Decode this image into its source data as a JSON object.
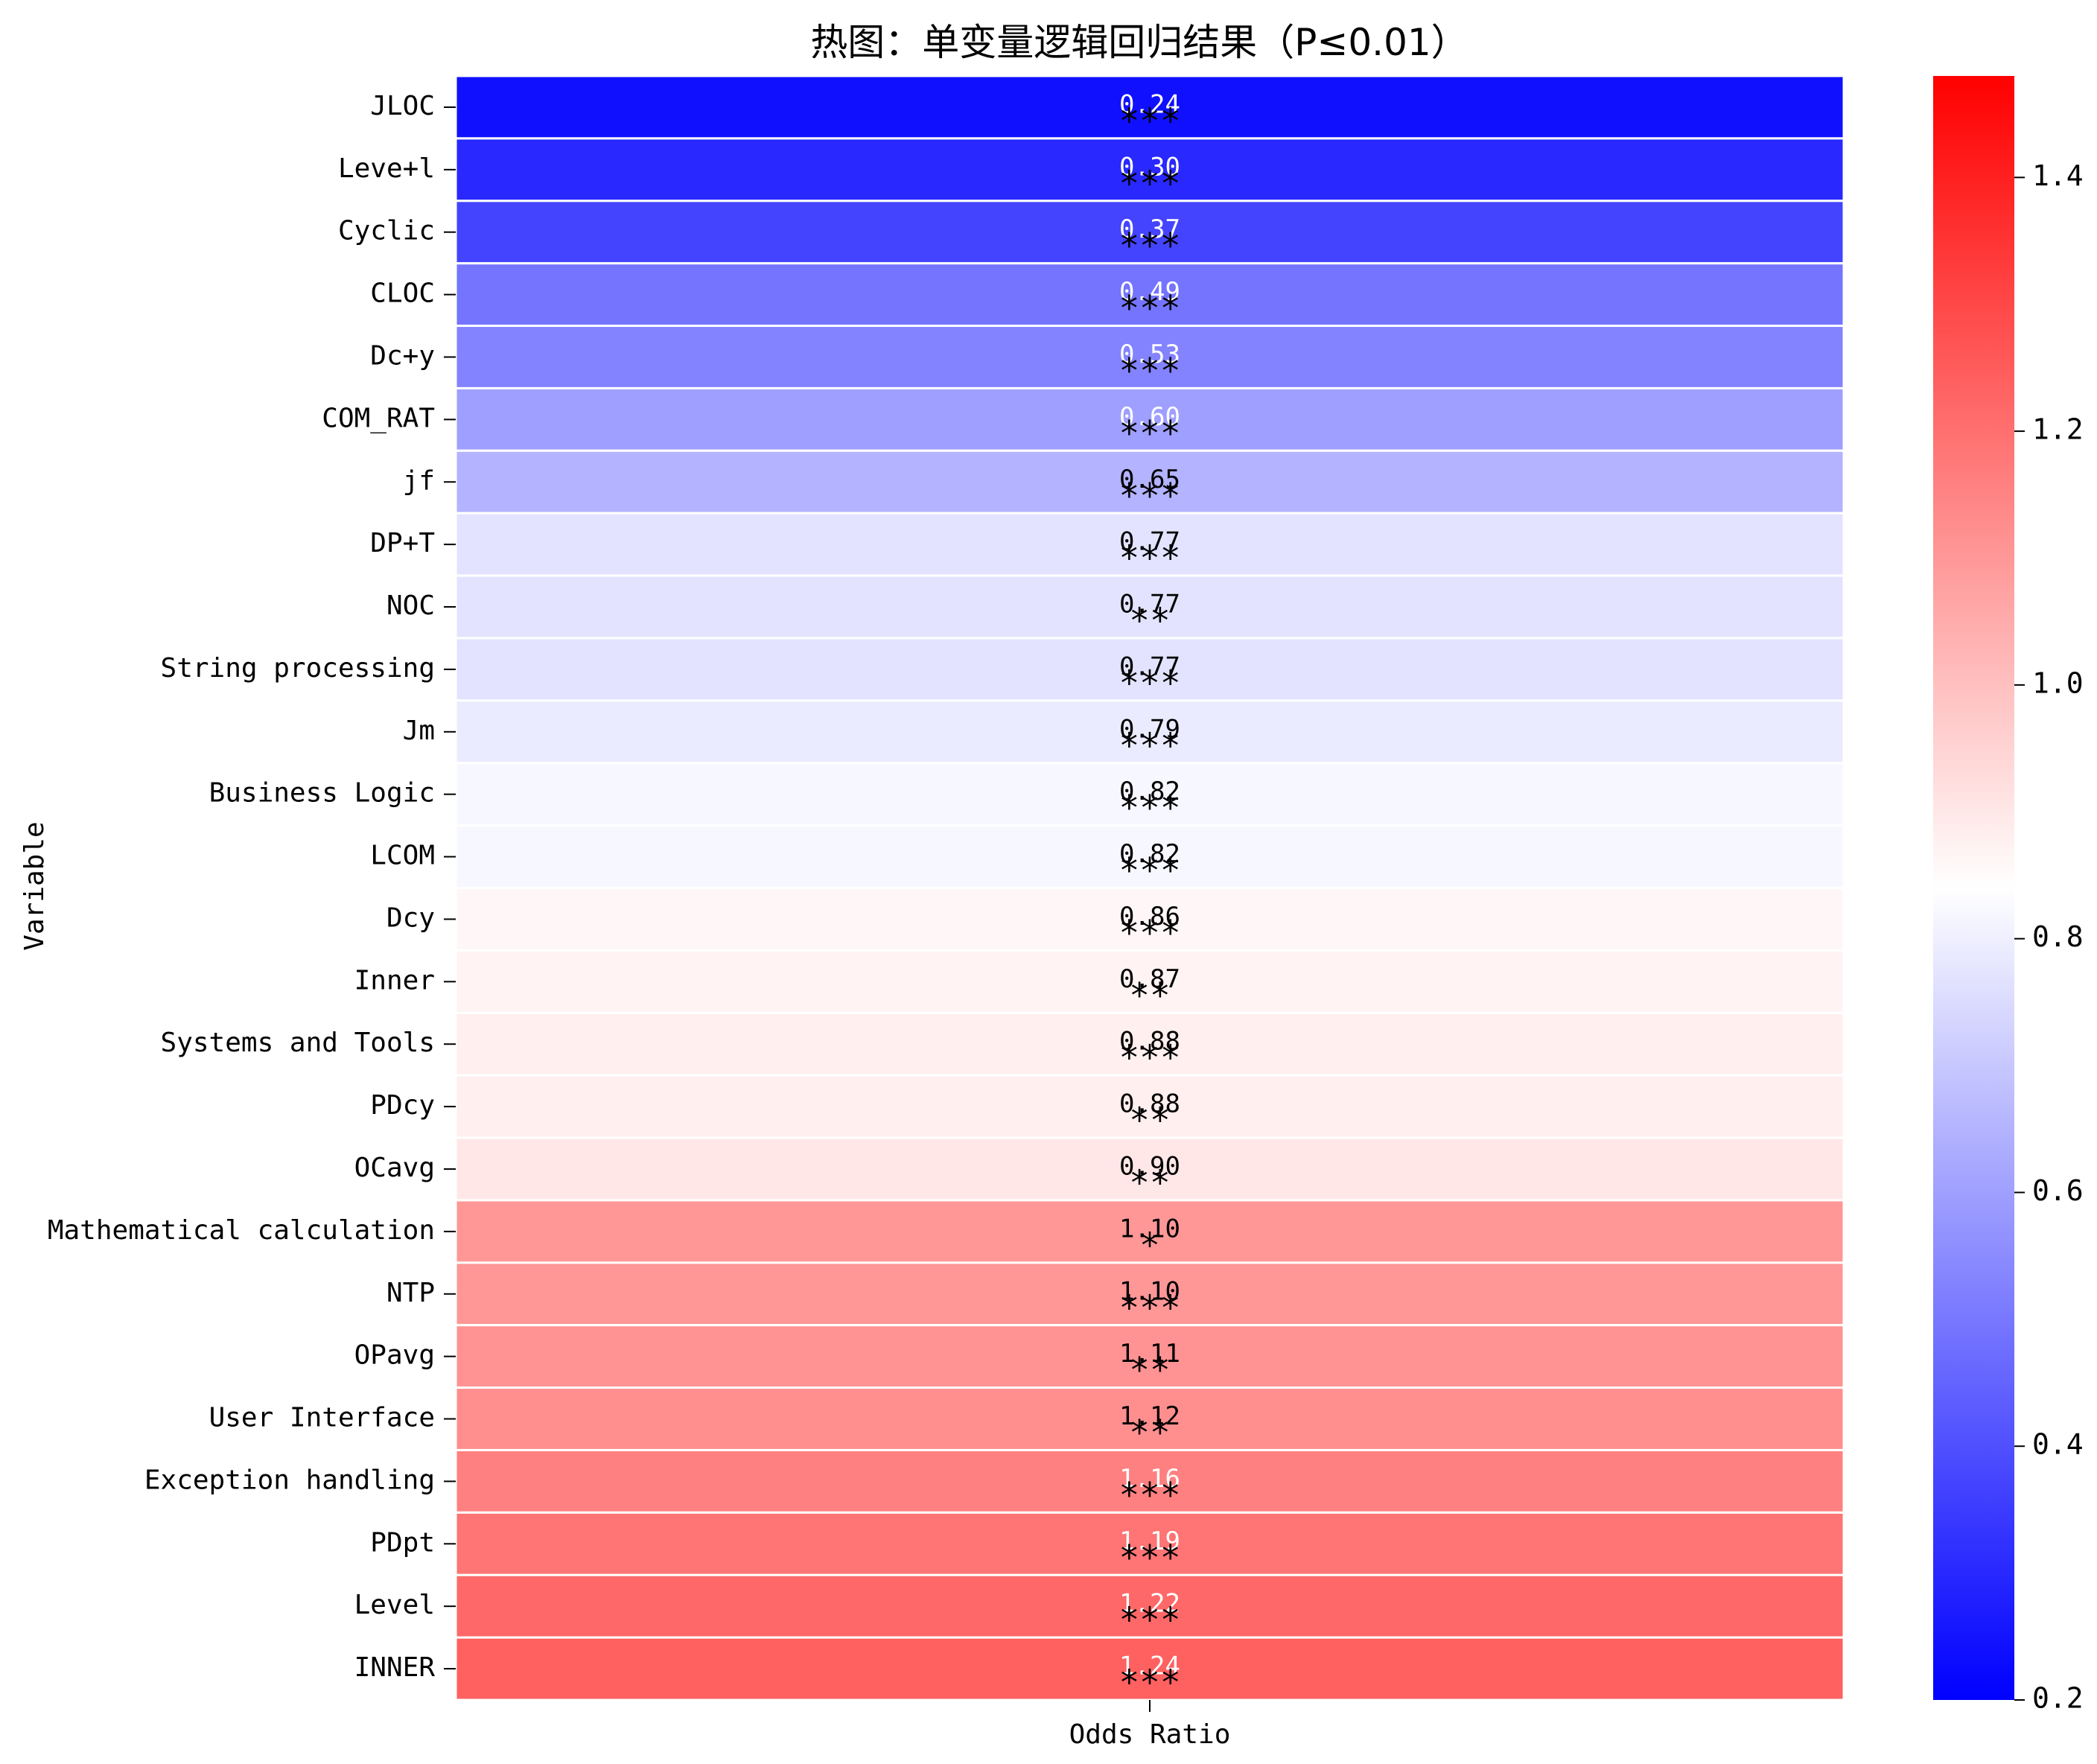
{
  "chart_data": {
    "type": "heatmap",
    "title": "热图：单变量逻辑回归结果（P≤0.01）",
    "xlabel": "",
    "ylabel": "Variable",
    "columns": [
      "Odds Ratio"
    ],
    "rows": [
      {
        "label": "JLOC",
        "value": 0.24,
        "value_text": "0.24",
        "sig": "***"
      },
      {
        "label": "Leve+l",
        "value": 0.3,
        "value_text": "0.30",
        "sig": "***"
      },
      {
        "label": "Cyclic",
        "value": 0.37,
        "value_text": "0.37",
        "sig": "***"
      },
      {
        "label": "CLOC",
        "value": 0.49,
        "value_text": "0.49",
        "sig": "***"
      },
      {
        "label": "Dc+y",
        "value": 0.53,
        "value_text": "0.53",
        "sig": "***"
      },
      {
        "label": "COM_RAT",
        "value": 0.6,
        "value_text": "0.60",
        "sig": "***"
      },
      {
        "label": "jf",
        "value": 0.65,
        "value_text": "0.65",
        "sig": "***"
      },
      {
        "label": "DP+T",
        "value": 0.77,
        "value_text": "0.77",
        "sig": "***"
      },
      {
        "label": "NOC",
        "value": 0.77,
        "value_text": "0.77",
        "sig": "**"
      },
      {
        "label": "String processing",
        "value": 0.77,
        "value_text": "0.77",
        "sig": "***"
      },
      {
        "label": "Jm",
        "value": 0.79,
        "value_text": "0.79",
        "sig": "***"
      },
      {
        "label": "Business Logic",
        "value": 0.82,
        "value_text": "0.82",
        "sig": "***"
      },
      {
        "label": "LCOM",
        "value": 0.82,
        "value_text": "0.82",
        "sig": "***"
      },
      {
        "label": "Dcy",
        "value": 0.86,
        "value_text": "0.86",
        "sig": "***"
      },
      {
        "label": "Inner",
        "value": 0.87,
        "value_text": "0.87",
        "sig": "**"
      },
      {
        "label": "Systems and Tools",
        "value": 0.88,
        "value_text": "0.88",
        "sig": "***"
      },
      {
        "label": "PDcy",
        "value": 0.88,
        "value_text": "0.88",
        "sig": "**"
      },
      {
        "label": "OCavg",
        "value": 0.9,
        "value_text": "0.90",
        "sig": "**"
      },
      {
        "label": "Mathematical calculation",
        "value": 1.1,
        "value_text": "1.10",
        "sig": "*"
      },
      {
        "label": "NTP",
        "value": 1.1,
        "value_text": "1.10",
        "sig": "***"
      },
      {
        "label": "OPavg",
        "value": 1.11,
        "value_text": "1.11",
        "sig": "**"
      },
      {
        "label": "User Interface",
        "value": 1.12,
        "value_text": "1.12",
        "sig": "**"
      },
      {
        "label": "Exception handling",
        "value": 1.16,
        "value_text": "1.16",
        "sig": "***"
      },
      {
        "label": "PDpt",
        "value": 1.19,
        "value_text": "1.19",
        "sig": "***"
      },
      {
        "label": "Level",
        "value": 1.22,
        "value_text": "1.22",
        "sig": "***"
      },
      {
        "label": "INNER",
        "value": 1.24,
        "value_text": "1.24",
        "sig": "***"
      }
    ],
    "colorbar": {
      "colormap": "bwr",
      "range": [
        0.2,
        1.48
      ],
      "center": 0.84,
      "ticks": [
        0.2,
        0.4,
        0.6,
        0.8,
        1.0,
        1.2,
        1.4
      ],
      "tick_labels": [
        "0.2",
        "0.4",
        "0.6",
        "0.8",
        "1.0",
        "1.2",
        "1.4"
      ],
      "low_color": "#0000ff",
      "mid_color": "#ffffff",
      "high_color": "#ff0000"
    },
    "grid": false,
    "cell_border_color": "#ffffff"
  }
}
